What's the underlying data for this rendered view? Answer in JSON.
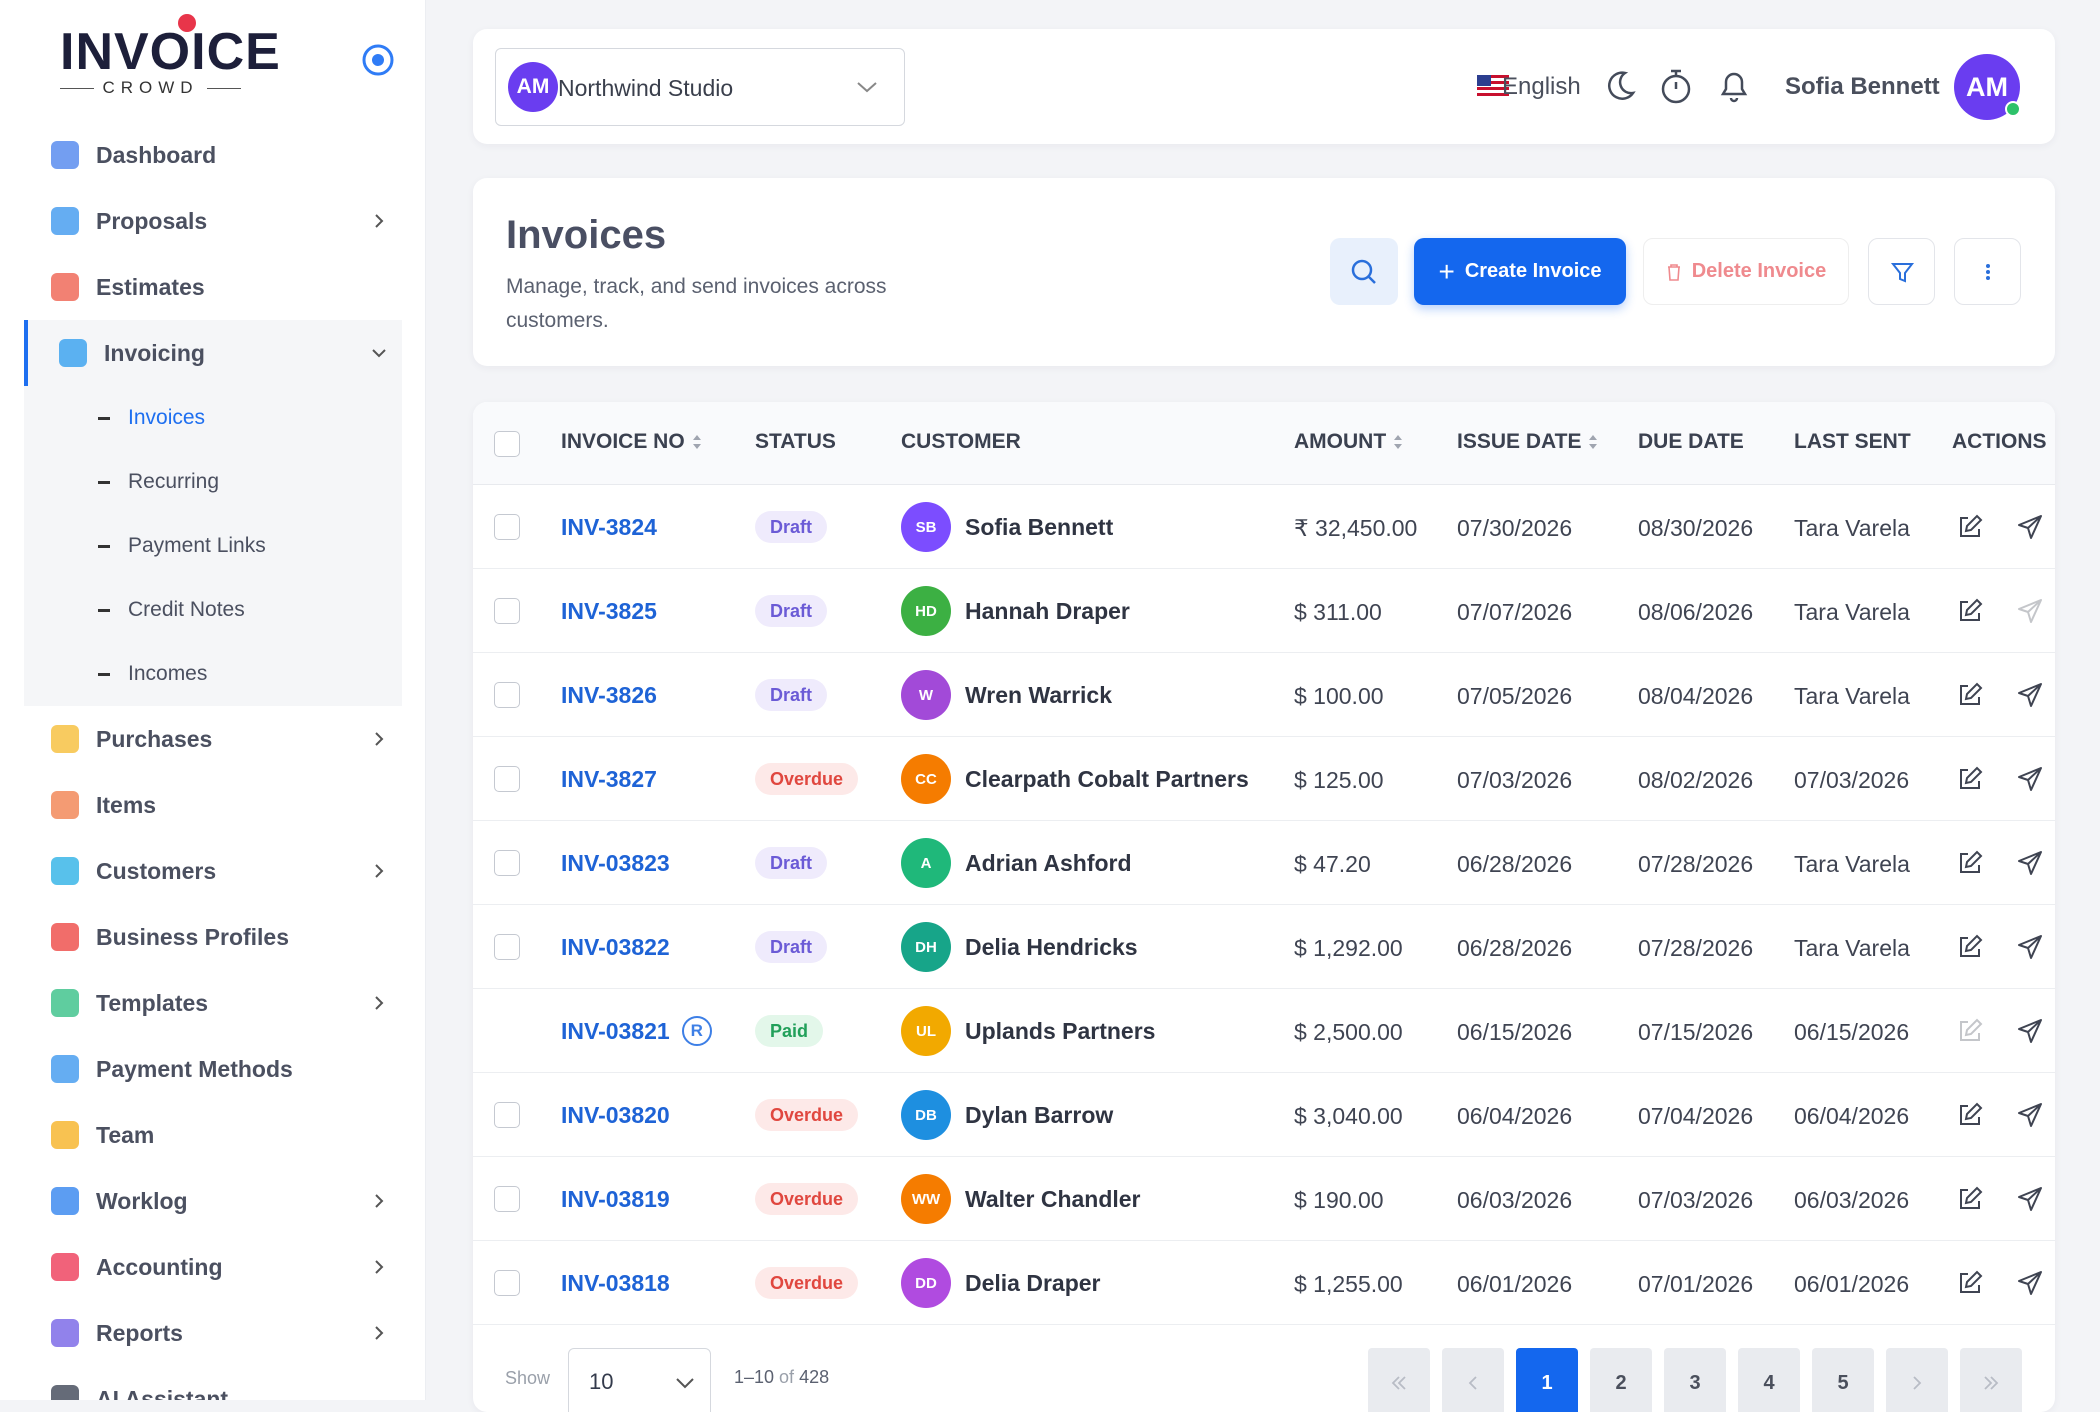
{
  "brand": {
    "name": "INVOICE",
    "tagline": "CROWD"
  },
  "sidebar": {
    "menu": [
      {
        "label": "Dashboard",
        "chevron": false
      },
      {
        "label": "Proposals",
        "chevron": true
      },
      {
        "label": "Estimates",
        "chevron": false
      },
      {
        "label": "Invoicing",
        "chevron": true,
        "active": true,
        "expanded": true,
        "children": [
          {
            "label": "Invoices",
            "active": true
          },
          {
            "label": "Recurring"
          },
          {
            "label": "Payment Links"
          },
          {
            "label": "Credit Notes"
          },
          {
            "label": "Incomes"
          }
        ]
      },
      {
        "label": "Purchases",
        "chevron": true
      },
      {
        "label": "Items",
        "chevron": false
      },
      {
        "label": "Customers",
        "chevron": true
      },
      {
        "label": "Business Profiles",
        "chevron": false
      },
      {
        "label": "Templates",
        "chevron": true
      },
      {
        "label": "Payment Methods",
        "chevron": false
      },
      {
        "label": "Team",
        "chevron": false
      },
      {
        "label": "Worklog",
        "chevron": true
      },
      {
        "label": "Accounting",
        "chevron": true
      },
      {
        "label": "Reports",
        "chevron": true
      },
      {
        "label": "AI Assistant",
        "chevron": false
      }
    ]
  },
  "topbar": {
    "workspace_initials": "AM",
    "workspace": "Northwind Studio",
    "language": "English",
    "user": "Sofia Bennett",
    "user_initials": "AM"
  },
  "header": {
    "title": "Invoices",
    "subtitle": "Manage, track, and send invoices across customers.",
    "create_button": "Create Invoice",
    "delete_button": "Delete Invoice"
  },
  "table": {
    "columns": [
      {
        "label": "INVOICE NO",
        "sortable": true
      },
      {
        "label": "STATUS",
        "sortable": false
      },
      {
        "label": "CUSTOMER",
        "sortable": false
      },
      {
        "label": "AMOUNT",
        "sortable": true
      },
      {
        "label": "ISSUE DATE",
        "sortable": true
      },
      {
        "label": "DUE DATE",
        "sortable": false
      },
      {
        "label": "LAST SENT",
        "sortable": false
      },
      {
        "label": "ACTIONS",
        "sortable": false
      }
    ],
    "rows": [
      {
        "invoice_no": "INV-3824",
        "status": "Draft",
        "status_color": "#6b5bd6",
        "status_bg": "#efebfc",
        "initials": "SB",
        "avatar_color": "#7c4dff",
        "customer": "Sofia Bennett",
        "amount": "₹ 32,450.00",
        "issue_date": "07/30/2026",
        "due_date": "08/30/2026",
        "last_sent": "Tara Varela",
        "selectable": true,
        "edit_enabled": true,
        "send_enabled": true
      },
      {
        "invoice_no": "INV-3825",
        "status": "Draft",
        "status_color": "#6b5bd6",
        "status_bg": "#efebfc",
        "initials": "HD",
        "avatar_color": "#3cb043",
        "customer": "Hannah Draper",
        "amount": "$ 311.00",
        "issue_date": "07/07/2026",
        "due_date": "08/06/2026",
        "last_sent": "Tara Varela",
        "selectable": true,
        "edit_enabled": true,
        "send_enabled": false
      },
      {
        "invoice_no": "INV-3826",
        "status": "Draft",
        "status_color": "#6b5bd6",
        "status_bg": "#efebfc",
        "initials": "W",
        "avatar_color": "#a24ad8",
        "customer": "Wren Warrick",
        "amount": "$ 100.00",
        "issue_date": "07/05/2026",
        "due_date": "08/04/2026",
        "last_sent": "Tara Varela",
        "selectable": true,
        "edit_enabled": true,
        "send_enabled": true
      },
      {
        "invoice_no": "INV-3827",
        "status": "Overdue",
        "status_color": "#e0473f",
        "status_bg": "#fde9e8",
        "initials": "CC",
        "avatar_color": "#f57c00",
        "customer": "Clearpath Cobalt Partners",
        "amount": "$ 125.00",
        "issue_date": "07/03/2026",
        "due_date": "08/02/2026",
        "last_sent": "07/03/2026",
        "selectable": true,
        "edit_enabled": true,
        "send_enabled": true
      },
      {
        "invoice_no": "INV-03823",
        "status": "Draft",
        "status_color": "#6b5bd6",
        "status_bg": "#efebfc",
        "initials": "A",
        "avatar_color": "#1fb87a",
        "customer": "Adrian Ashford",
        "amount": "$ 47.20",
        "issue_date": "06/28/2026",
        "due_date": "07/28/2026",
        "last_sent": "Tara Varela",
        "selectable": true,
        "edit_enabled": true,
        "send_enabled": true
      },
      {
        "invoice_no": "INV-03822",
        "status": "Draft",
        "status_color": "#6b5bd6",
        "status_bg": "#efebfc",
        "initials": "DH",
        "avatar_color": "#17a589",
        "customer": "Delia Hendricks",
        "amount": "$ 1,292.00",
        "issue_date": "06/28/2026",
        "due_date": "07/28/2026",
        "last_sent": "Tara Varela",
        "selectable": true,
        "edit_enabled": true,
        "send_enabled": true
      },
      {
        "invoice_no": "INV-03821",
        "recurring_badge": "R",
        "status": "Paid",
        "status_color": "#22a05a",
        "status_bg": "#e3f7ea",
        "initials": "UL",
        "avatar_color": "#f2a900",
        "customer": "Uplands Partners",
        "amount": "$ 2,500.00",
        "issue_date": "06/15/2026",
        "due_date": "07/15/2026",
        "last_sent": "06/15/2026",
        "selectable": false,
        "edit_enabled": false,
        "send_enabled": true
      },
      {
        "invoice_no": "INV-03820",
        "status": "Overdue",
        "status_color": "#e0473f",
        "status_bg": "#fde9e8",
        "initials": "DB",
        "avatar_color": "#1e8fe0",
        "customer": "Dylan Barrow",
        "amount": "$ 3,040.00",
        "issue_date": "06/04/2026",
        "due_date": "07/04/2026",
        "last_sent": "06/04/2026",
        "selectable": true,
        "edit_enabled": true,
        "send_enabled": true
      },
      {
        "invoice_no": "INV-03819",
        "status": "Overdue",
        "status_color": "#e0473f",
        "status_bg": "#fde9e8",
        "initials": "WW",
        "avatar_color": "#f57c00",
        "customer": "Walter Chandler",
        "amount": "$ 190.00",
        "issue_date": "06/03/2026",
        "due_date": "07/03/2026",
        "last_sent": "06/03/2026",
        "selectable": true,
        "edit_enabled": true,
        "send_enabled": true
      },
      {
        "invoice_no": "INV-03818",
        "status": "Overdue",
        "status_color": "#e0473f",
        "status_bg": "#fde9e8",
        "initials": "DD",
        "avatar_color": "#b04be0",
        "customer": "Delia Draper",
        "amount": "$ 1,255.00",
        "issue_date": "06/01/2026",
        "due_date": "07/01/2026",
        "last_sent": "06/01/2026",
        "selectable": true,
        "edit_enabled": true,
        "send_enabled": true
      }
    ]
  },
  "pagination": {
    "show_label": "Show",
    "page_size": "10",
    "range": "1–10",
    "of_label": "of",
    "total": "428",
    "pages": [
      "1",
      "2",
      "3",
      "4",
      "5"
    ],
    "current": "1"
  }
}
